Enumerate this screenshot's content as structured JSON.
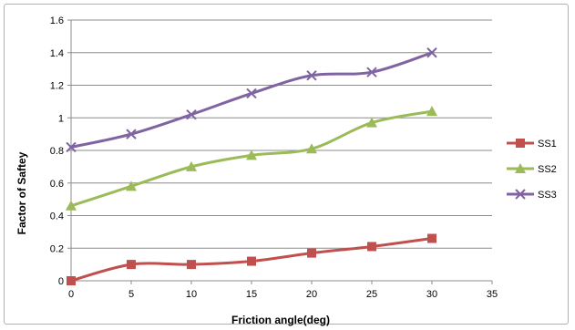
{
  "chart_data": {
    "type": "line",
    "title": "",
    "xlabel": "Friction angle(deg)",
    "ylabel": "Factor of Saftey",
    "x": [
      0,
      5,
      10,
      15,
      20,
      25,
      30
    ],
    "xlim": [
      0,
      35
    ],
    "xticks": [
      "0",
      "5",
      "10",
      "15",
      "20",
      "25",
      "30",
      "35"
    ],
    "ylim": [
      0,
      1.6
    ],
    "yticks": [
      "0",
      "0.2",
      "0.4",
      "0.6",
      "0.8",
      "1",
      "1.2",
      "1.4",
      "1.6"
    ],
    "grid": "horizontal",
    "legend_position": "right",
    "series": [
      {
        "name": "SS1",
        "color": "#c0504d",
        "marker": "square",
        "values": [
          0.0,
          0.1,
          0.1,
          0.12,
          0.17,
          0.21,
          0.26
        ]
      },
      {
        "name": "SS2",
        "color": "#9bbb59",
        "marker": "triangle",
        "values": [
          0.46,
          0.58,
          0.7,
          0.77,
          0.81,
          0.97,
          1.04
        ]
      },
      {
        "name": "SS3",
        "color": "#8064a2",
        "marker": "x",
        "values": [
          0.82,
          0.9,
          1.02,
          1.15,
          1.26,
          1.28,
          1.4
        ]
      }
    ]
  }
}
